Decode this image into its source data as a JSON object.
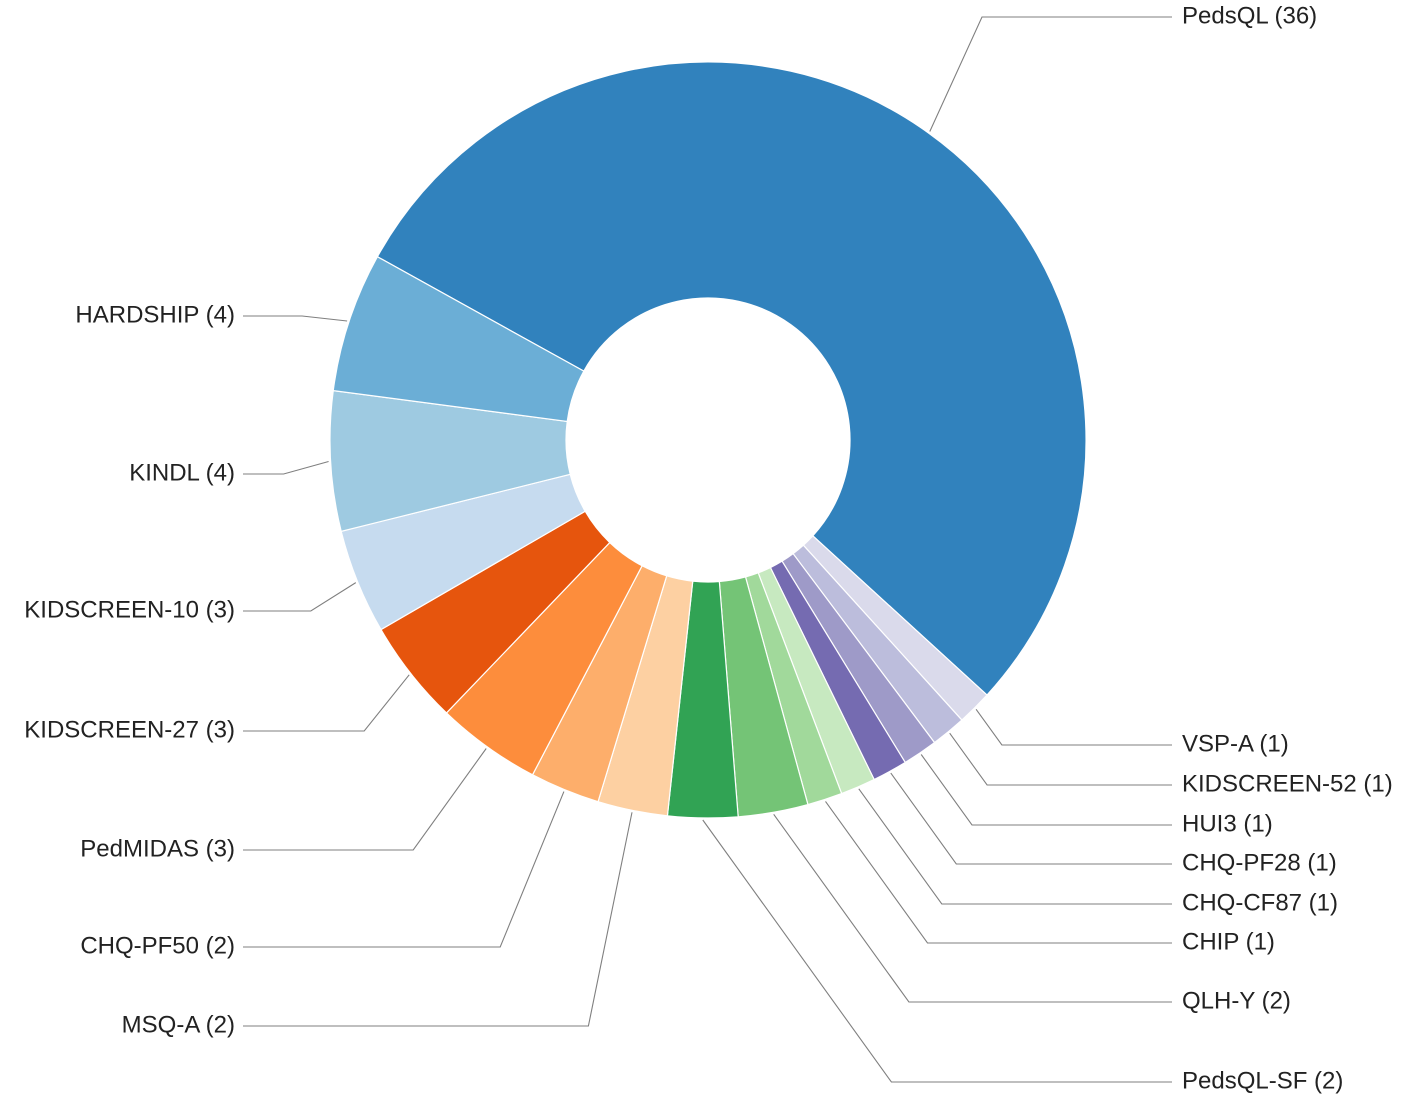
{
  "chart_data": {
    "type": "pie",
    "title": "",
    "donut": true,
    "legend": "none",
    "slices": [
      {
        "label": "PedsQL (36)",
        "value": 36,
        "color": "#3182bd"
      },
      {
        "label": "VSP-A (1)",
        "value": 1,
        "color": "#dadaeb"
      },
      {
        "label": "KIDSCREEN-52 (1)",
        "value": 1,
        "color": "#bcbddc"
      },
      {
        "label": "HUI3 (1)",
        "value": 1,
        "color": "#9e9ac8"
      },
      {
        "label": "CHQ-PF28 (1)",
        "value": 1,
        "color": "#756bb1"
      },
      {
        "label": "CHQ-CF87 (1)",
        "value": 1,
        "color": "#c7e9c0"
      },
      {
        "label": "CHIP (1)",
        "value": 1,
        "color": "#a1d99b"
      },
      {
        "label": "QLH-Y (2)",
        "value": 2,
        "color": "#74c476"
      },
      {
        "label": "PedsQL-SF (2)",
        "value": 2,
        "color": "#31a354"
      },
      {
        "label": "MSQ-A (2)",
        "value": 2,
        "color": "#fdd0a2"
      },
      {
        "label": "CHQ-PF50 (2)",
        "value": 2,
        "color": "#fdae6b"
      },
      {
        "label": "PedMIDAS (3)",
        "value": 3,
        "color": "#fd8d3c"
      },
      {
        "label": "KIDSCREEN-27 (3)",
        "value": 3,
        "color": "#e6550d"
      },
      {
        "label": "KIDSCREEN-10 (3)",
        "value": 3,
        "color": "#c6dbef"
      },
      {
        "label": "KINDL (4)",
        "value": 4,
        "color": "#9ecae1"
      },
      {
        "label": "HARDSHIP (4)",
        "value": 4,
        "color": "#6baed6"
      }
    ]
  }
}
